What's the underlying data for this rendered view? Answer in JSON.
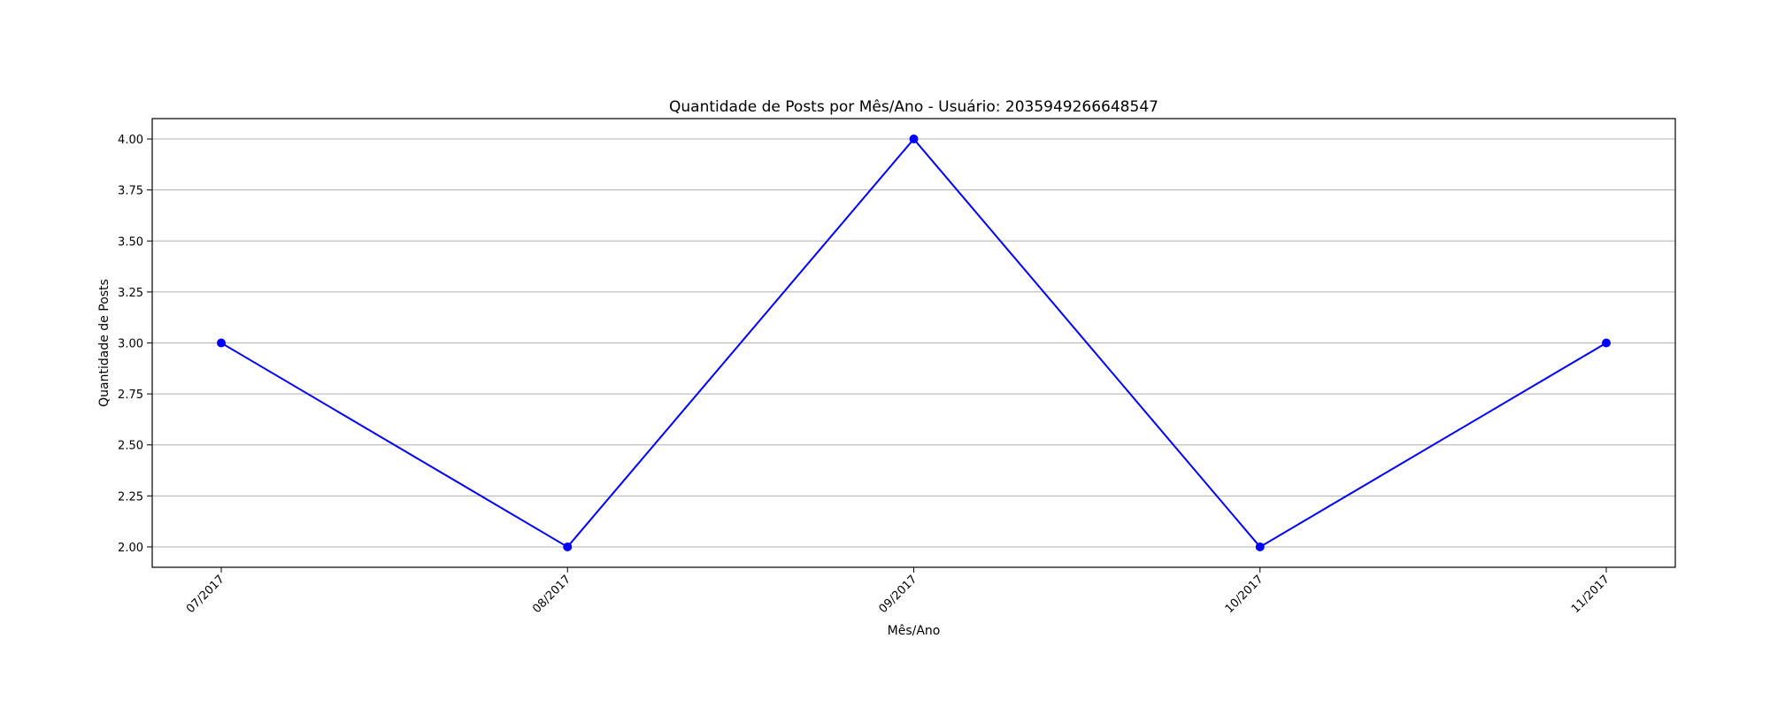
{
  "chart_data": {
    "type": "line",
    "title": "Quantidade de Posts por Mês/Ano - Usuário: 2035949266648547",
    "xlabel": "Mês/Ano",
    "ylabel": "Quantidade de Posts",
    "categories": [
      "07/2017",
      "08/2017",
      "09/2017",
      "10/2017",
      "11/2017"
    ],
    "series": [
      {
        "values": [
          3,
          2,
          4,
          2,
          3
        ],
        "color": "#0000ff",
        "marker": "circle"
      }
    ],
    "ylim": [
      1.9,
      4.1
    ],
    "yticks": [
      2.0,
      2.25,
      2.5,
      2.75,
      3.0,
      3.25,
      3.5,
      3.75,
      4.0
    ],
    "ytick_labels": [
      "2.00",
      "2.25",
      "2.50",
      "2.75",
      "3.00",
      "3.25",
      "3.50",
      "3.75",
      "4.00"
    ],
    "grid": "y",
    "legend": "none",
    "grid_color": "#b0b0b0"
  }
}
